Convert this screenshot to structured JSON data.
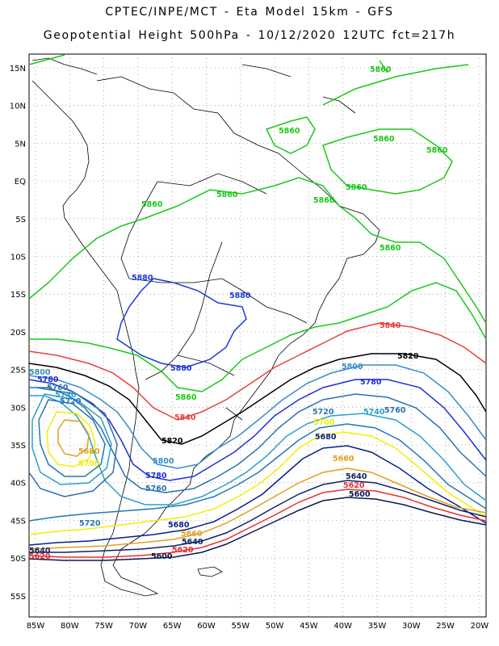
{
  "header": {
    "line1": "CPTEC/INPE/MCT -  Eta Model 15km - GFS",
    "line2": "Geopotential Height 500hPa - 10/12/2020 12UTC fct=217h"
  },
  "axes": {
    "lat_ticks": [
      "15N",
      "10N",
      "5N",
      "EQ",
      "5S",
      "10S",
      "15S",
      "20S",
      "25S",
      "30S",
      "35S",
      "40S",
      "45S",
      "50S",
      "55S"
    ],
    "lon_ticks": [
      "85W",
      "80W",
      "75W",
      "70W",
      "65W",
      "60W",
      "55W",
      "50W",
      "45W",
      "40W",
      "35W",
      "30W",
      "25W",
      "20W"
    ]
  },
  "colors": {
    "c5880": "#1e3adb",
    "c5860": "#19c819",
    "c5840": "#e8403c",
    "c5820": "#000000",
    "c5800": "#3a8cc0",
    "c5780": "#1f2fd6",
    "c5760": "#2d6fae",
    "c5740": "#2aa0c8",
    "c5720": "#2576b5",
    "c5700": "#f0f000",
    "c5680": "#0b1d8a",
    "c5660": "#e0a020",
    "c5640": "#112266",
    "c5620": "#e83030",
    "c5600": "#0a1850",
    "coast": "#000000"
  },
  "contour_labels": {
    "v5880": "5880",
    "v5860": "5860",
    "v5840": "5840",
    "v5820": "5820",
    "v5800": "5800",
    "v5780": "5780",
    "v5760": "5760",
    "v5740": "5740",
    "v5720": "5720",
    "v5700": "5700",
    "v5680": "5680",
    "v5660": "5660",
    "v5640": "5640",
    "v5620": "5620",
    "v5600": "5600"
  }
}
